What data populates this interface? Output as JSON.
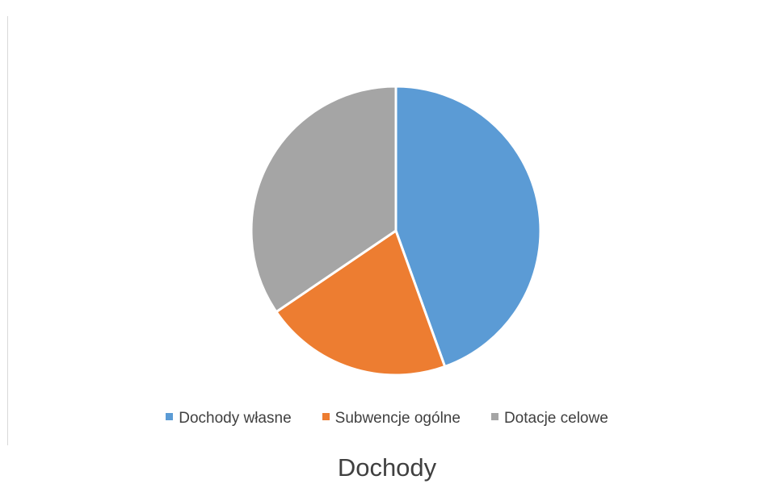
{
  "chart_data": {
    "type": "pie",
    "title": "Dochody",
    "categories": [
      "Dochody własne",
      "Subwencje ogólne",
      "Dotacje celowe"
    ],
    "values": [
      44.5,
      21.0,
      34.5
    ],
    "unit": "%",
    "colors": [
      "#5B9BD5",
      "#ED7D31",
      "#A5A5A5"
    ],
    "legend_position": "bottom",
    "start_angle": "12 o'clock",
    "direction": "clockwise"
  },
  "legend": {
    "items": [
      {
        "label": "Dochody własne",
        "color": "#5B9BD5"
      },
      {
        "label": "Subwencje ogólne",
        "color": "#ED7D31"
      },
      {
        "label": "Dotacje celowe",
        "color": "#A5A5A5"
      }
    ]
  }
}
